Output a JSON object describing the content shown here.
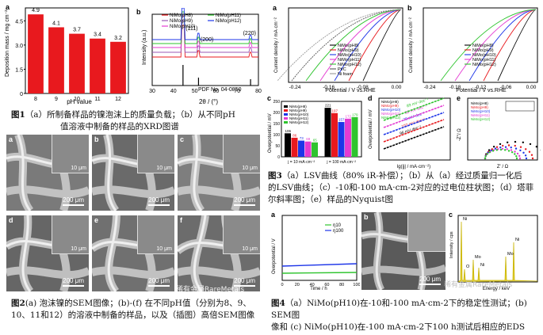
{
  "fig1": {
    "a": {
      "panel_label": "a",
      "ylabel": "Deposition mass / mg cm⁻²",
      "xlabel": "pH value",
      "yticks": [
        "0",
        "1.5",
        "3.0",
        "4.5"
      ],
      "color": "#e8191e"
    },
    "b": {
      "panel_label": "b",
      "ylabel": "Intensity (a.u.)",
      "xlabel": "2θ / (°)",
      "xticks": [
        "30",
        "40",
        "50",
        "60",
        "70",
        "80"
      ],
      "legend": [
        "NiMo(pH8)",
        "NiMo(pH9)",
        "NiMo(pH10)",
        "NiMo(pH11)",
        "NiMo(pH12)"
      ],
      "peaks": [
        "(111)",
        "(200)",
        "(220)"
      ],
      "pdf": "PDF No. 04-0850"
    },
    "caption_line1": "（a）所制备样品的镍泡沫上的质量负载；（b）从不同pH",
    "caption_line2": "值溶液中制备的样品的XRD图谱",
    "caption_fig": "图1"
  },
  "chart_data": [
    {
      "type": "bar",
      "categories": [
        "8",
        "9",
        "10",
        "11",
        "12"
      ],
      "values": [
        4.9,
        4.1,
        3.7,
        3.4,
        3.2
      ],
      "data_labels": [
        "4.9",
        "4.1",
        "3.7",
        "3.4",
        "3.2"
      ],
      "xlabel": "pH value",
      "ylabel": "Deposition mass / mg cm⁻²",
      "ylim": [
        0,
        5.3
      ]
    },
    {
      "type": "bar",
      "categories": [
        "j = 10 mA·cm⁻²",
        "j = 100 mA·cm⁻²"
      ],
      "series": [
        {
          "name": "NiMo(pH8)",
          "values": [
            106,
            221
          ]
        },
        {
          "name": "NiMo(pH9)",
          "values": [
            86,
            197
          ]
        },
        {
          "name": "NiMo(pH10)",
          "values": [
            73,
            157
          ]
        },
        {
          "name": "NiMo(pH11)",
          "values": [
            69,
            172
          ]
        },
        {
          "name": "NiMo(pH12)",
          "values": [
            65,
            179
          ]
        }
      ],
      "data_labels": [
        [
          "106",
          "86",
          "73",
          "69",
          "65"
        ],
        [
          "221",
          "197",
          "157",
          "172",
          "179"
        ]
      ],
      "ylabel": "Overpotential / mV",
      "ylim": [
        0,
        250
      ]
    }
  ],
  "fig2": {
    "panels": [
      {
        "label": "a",
        "scale": "200 μm",
        "inset": "10 μm"
      },
      {
        "label": "b",
        "scale": "200 μm",
        "inset": "10 μm"
      },
      {
        "label": "c",
        "scale": "200 μm",
        "inset": "10 μm"
      },
      {
        "label": "d",
        "scale": "200 μm",
        "inset": "10 μm"
      },
      {
        "label": "e",
        "scale": "200 μm",
        "inset": "10 μm"
      },
      {
        "label": "f",
        "scale": "200 μm",
        "inset": "10 μm"
      }
    ],
    "watermark": "稀有金属RareMetals",
    "caption_fig": "图2",
    "caption_line1": "(a) 泡沫镍的SEM图像；(b)-(f) 在不同pH值（分别为8、9、",
    "caption_line2": "10、11和12）的溶液中制备的样品，以及（插图）高倍SEM图像"
  },
  "fig3": {
    "a": {
      "label": "a",
      "ylabel": "Current density / mA·cm⁻²",
      "xlabel": "Potential / V vs.RHE",
      "xticks": [
        "-0.24",
        "-0.16",
        "-0.08",
        "0.00"
      ],
      "legend": [
        "NiMo(pH8)",
        "NiMo(pH9)",
        "NiMo(pH10)",
        "NiMo(pH11)",
        "NiMo(pH12)",
        "Pt/C",
        "Ni foam"
      ]
    },
    "b": {
      "label": "b",
      "ylabel": "Current density / mA·cm⁻²",
      "xlabel": "Potential / V vs.RHE",
      "xticks": [
        "-0.24",
        "-0.18",
        "-0.12",
        "-0.06",
        "0.00"
      ],
      "legend": [
        "NiMo(pH8)",
        "NiMo(pH9)",
        "NiMo(pH10)",
        "NiMo(pH11)",
        "NiMo(pH12)"
      ]
    },
    "c": {
      "label": "c",
      "yticks": [
        "0",
        "50",
        "100",
        "150",
        "200",
        "250"
      ]
    },
    "d": {
      "label": "d",
      "ylabel": "Overpotential / mV",
      "xlabel": "lg(|j| / mA·cm⁻²)",
      "slopes": [
        "96 mV·dec⁻¹",
        "102 mV·dec⁻¹",
        "79 mV·dec⁻¹",
        "88 mV·dec⁻¹",
        "89 mV·dec⁻¹"
      ]
    },
    "e": {
      "label": "e",
      "ylabel": "-Z''/ Ω",
      "xlabel": "Z' / Ω"
    },
    "caption_fig": "图3",
    "caption_line1": "（a）LSV曲线（80% iR-补偿）；（b）从（a）经过质量归一化后",
    "caption_line2": "的LSV曲线；（c）-10和-100 mA·cm-2对应的过电位柱状图；（d）塔菲",
    "caption_line3": "尔斜率图；（e）样品的Nyquist图"
  },
  "fig4": {
    "a": {
      "label": "a",
      "ylabel": "Overpotential / V",
      "xlabel": "Time / h",
      "xticks": [
        "0",
        "20",
        "40",
        "60",
        "80",
        "100"
      ],
      "legend": [
        "η10",
        "η100"
      ]
    },
    "b": {
      "label": "b",
      "scale": "200 μm",
      "inset": "10 μm"
    },
    "c": {
      "label": "c",
      "ylabel": "Intensity / cps",
      "xlabel": "Energy / keV",
      "peaks": [
        "Ni",
        "O",
        "Mo",
        "Ni",
        "Mo",
        "Ni"
      ]
    },
    "caption_fig": "图4",
    "caption_line1": "（a）NiMo(pH10)在-10和-100 mA·cm-2下的稳定性测试；(b) SEM图",
    "caption_line2": "像和 (c) NiMo(pH10)在-100 mA·cm-2下100 h测试后相应的EDS",
    "watermark": "稀有金属RareMetals"
  },
  "colors": {
    "pH8": "#000000",
    "pH9": "#e8191e",
    "pH10": "#1d35e8",
    "pH11": "#e43bd2",
    "pH12": "#2ec42e"
  }
}
